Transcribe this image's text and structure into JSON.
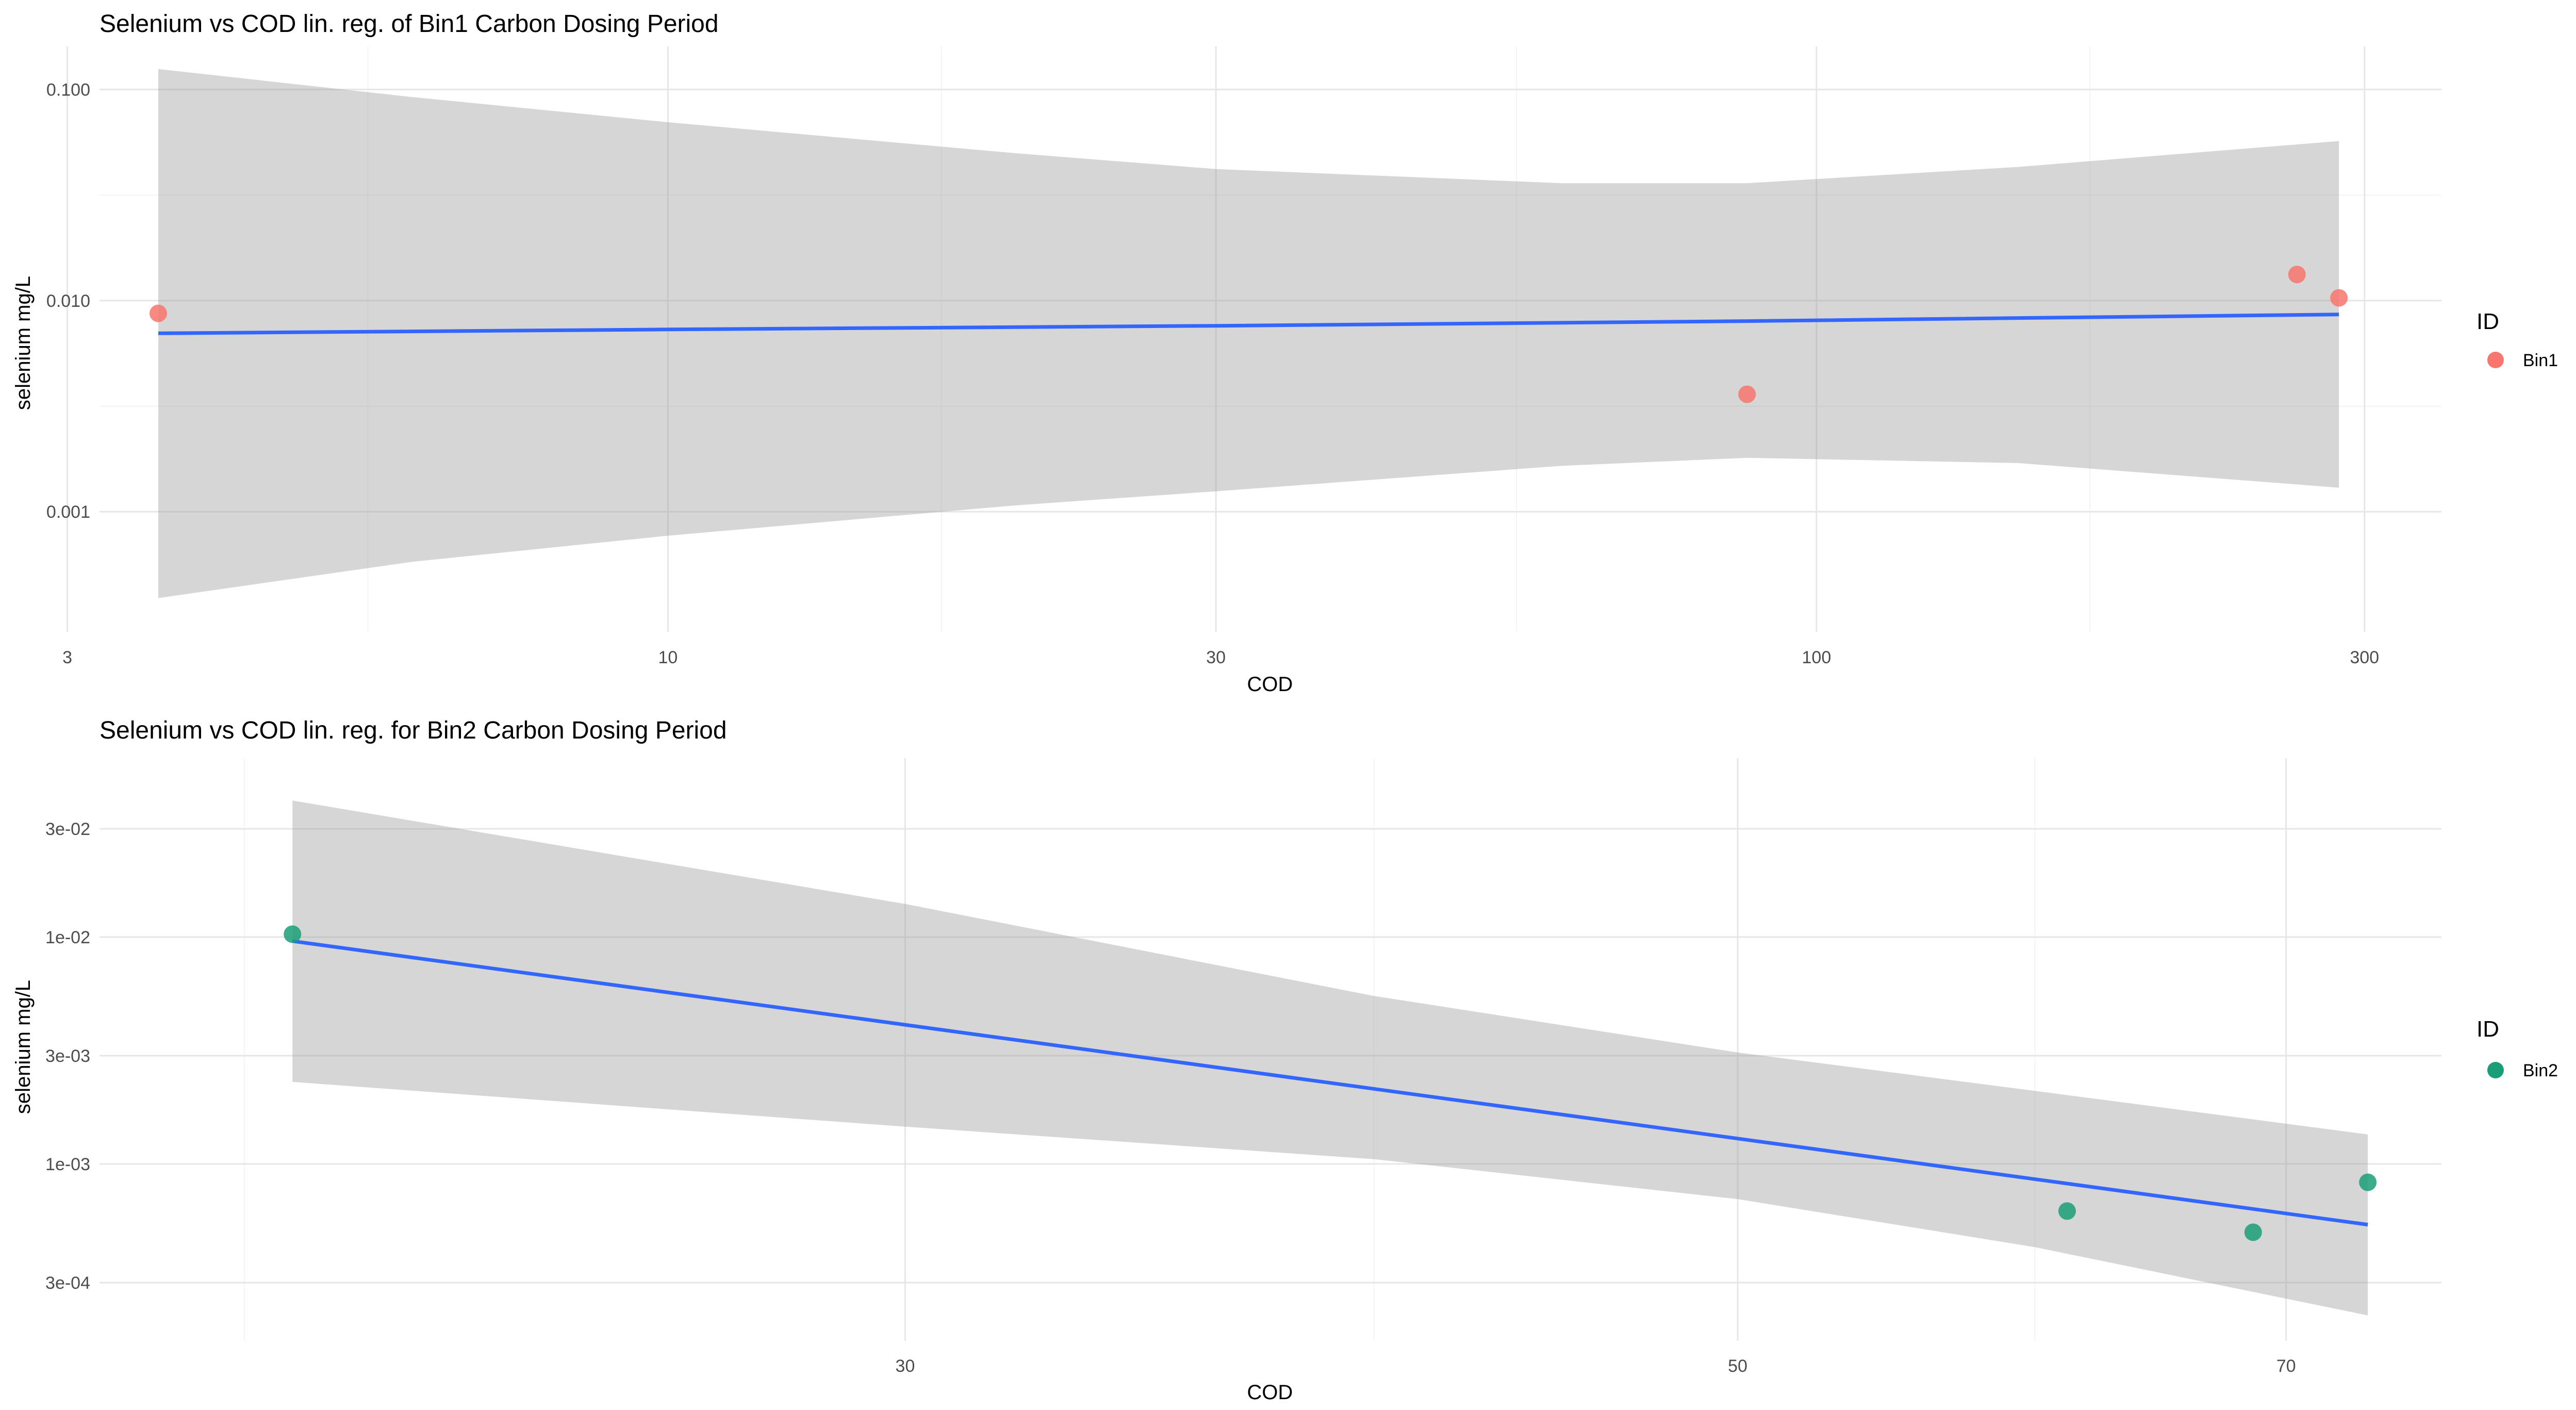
{
  "chart_data": [
    {
      "type": "scatter",
      "title": "Selenium vs COD lin. reg. of Bin1 Carbon Dosing Period",
      "xlabel": "COD",
      "ylabel": "selenium mg/L",
      "x_scale": "log",
      "y_scale": "log",
      "xlim": [
        3.2,
        350
      ],
      "ylim": [
        0.00027,
        0.16
      ],
      "x_ticks": [
        3,
        10,
        30,
        100,
        300
      ],
      "x_tick_labels": [
        "3",
        "10",
        "30",
        "100",
        "300"
      ],
      "x_minor_ticks": [
        5.48,
        17.3,
        54.8,
        173
      ],
      "y_ticks": [
        0.001,
        0.01,
        0.1
      ],
      "y_tick_labels": [
        "0.001",
        "0.010",
        "0.100"
      ],
      "y_minor_ticks": [
        0.00316,
        0.0316
      ],
      "grid": true,
      "legend": {
        "title": "ID",
        "position": "right",
        "entries": [
          {
            "label": "Bin1",
            "color": "#F8766D"
          }
        ]
      },
      "series": [
        {
          "name": "Bin1",
          "color": "#F8766D",
          "points": [
            {
              "x": 3.6,
              "y": 0.0087
            },
            {
              "x": 87,
              "y": 0.0036
            },
            {
              "x": 262,
              "y": 0.0133
            },
            {
              "x": 285,
              "y": 0.0103
            }
          ]
        }
      ],
      "fit": {
        "color": "#3366FF",
        "x": [
          3.6,
          10,
          30,
          87,
          285
        ],
        "y": [
          0.007,
          0.0073,
          0.0076,
          0.008,
          0.0086
        ]
      },
      "ribbon": {
        "color": "#999999",
        "x": [
          3.6,
          6,
          10,
          20,
          30,
          60,
          87,
          150,
          285
        ],
        "upper": [
          0.125,
          0.092,
          0.07,
          0.05,
          0.042,
          0.036,
          0.036,
          0.043,
          0.057
        ],
        "lower": [
          0.00039,
          0.00058,
          0.00077,
          0.00107,
          0.00125,
          0.00165,
          0.0018,
          0.0017,
          0.0013
        ]
      }
    },
    {
      "type": "scatter",
      "title": "Selenium vs COD lin. reg. for Bin2 Carbon Dosing Period",
      "xlabel": "COD",
      "ylabel": "selenium mg/L",
      "x_scale": "log",
      "y_scale": "log",
      "xlim": [
        18.3,
        77
      ],
      "ylim": [
        0.000166,
        0.0615
      ],
      "x_ticks": [
        30,
        50,
        70
      ],
      "x_tick_labels": [
        "30",
        "50",
        "70"
      ],
      "x_minor_ticks": [
        20,
        40,
        60
      ],
      "y_ticks": [
        0.0003,
        0.001,
        0.003,
        0.01,
        0.03
      ],
      "y_tick_labels": [
        "3e-04",
        "1e-03",
        "3e-03",
        "1e-02",
        "3e-02"
      ],
      "grid": true,
      "legend": {
        "title": "ID",
        "position": "right",
        "entries": [
          {
            "label": "Bin2",
            "color": "#1B9E77"
          }
        ]
      },
      "series": [
        {
          "name": "Bin2",
          "color": "#1B9E77",
          "points": [
            {
              "x": 20.6,
              "y": 0.0103
            },
            {
              "x": 61.2,
              "y": 0.00062
            },
            {
              "x": 68.6,
              "y": 0.0005
            },
            {
              "x": 73.6,
              "y": 0.00083
            }
          ]
        }
      ],
      "fit": {
        "color": "#3366FF",
        "x": [
          20.6,
          73.6
        ],
        "y": [
          0.0096,
          0.00054
        ]
      },
      "ribbon": {
        "color": "#999999",
        "x": [
          20.6,
          30,
          40,
          50,
          60,
          73.6
        ],
        "upper": [
          0.04,
          0.014,
          0.0055,
          0.0031,
          0.0021,
          0.00135
        ],
        "lower": [
          0.0023,
          0.00146,
          0.00105,
          0.0007,
          0.00043,
          0.000215
        ]
      }
    }
  ]
}
